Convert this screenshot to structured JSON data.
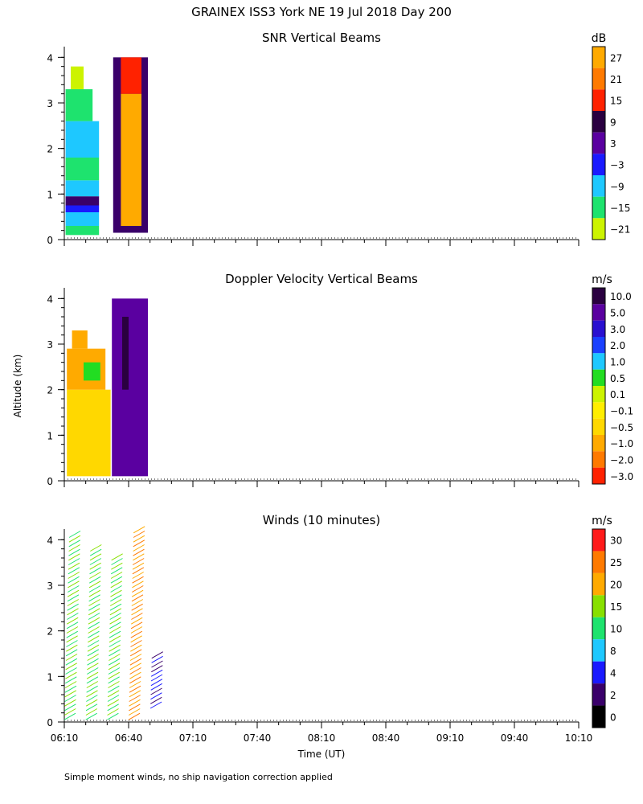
{
  "figure": {
    "title": "GRAINEX ISS3 York NE   19 Jul 2018 Day 200",
    "footnote": "Simple moment winds, no ship navigation correction applied",
    "ylabel": "Altitude (km)",
    "xlabel": "Time (UT)",
    "colors": {
      "low_snr": "#ccf300",
      "mid_snr": "#1ec8ff",
      "high_snr": "#ffaa00"
    }
  },
  "chart_data": [
    {
      "type": "heatmap",
      "title": "SNR Vertical Beams",
      "unit": "dB",
      "ylim": [
        0,
        4.2
      ],
      "yticks": [
        "0",
        "1",
        "2",
        "3",
        "4"
      ],
      "xticks": [
        "06:10",
        "06:40",
        "07:10",
        "07:40",
        "08:10",
        "08:40",
        "09:10",
        "09:40",
        "10:10"
      ],
      "colorbar": {
        "labels": [
          "27",
          "21",
          "15",
          "9",
          "3",
          "−3",
          "−9",
          "−15",
          "−21"
        ],
        "colors": [
          "#ffaa00",
          "#ff7a00",
          "#ff2200",
          "#2a0040",
          "#5a00a0",
          "#1a1aff",
          "#1ec8ff",
          "#1ee36e",
          "#ccf300"
        ]
      },
      "grid": false
    },
    {
      "type": "heatmap",
      "title": "Doppler Velocity Vertical Beams",
      "unit": "m/s",
      "ylim": [
        0,
        4.2
      ],
      "yticks": [
        "0",
        "1",
        "2",
        "3",
        "4"
      ],
      "xticks": [
        "06:10",
        "06:40",
        "07:10",
        "07:40",
        "08:10",
        "08:40",
        "09:10",
        "09:40",
        "10:10"
      ],
      "colorbar": {
        "labels": [
          "10.0",
          "5.0",
          "3.0",
          "2.0",
          "1.0",
          "0.5",
          "0.1",
          "−0.1",
          "−0.5",
          "−1.0",
          "−2.0",
          "−3.0"
        ],
        "colors": [
          "#2a0040",
          "#5a00a0",
          "#2a10d0",
          "#1a40ff",
          "#1ec8ff",
          "#22dd22",
          "#ccf300",
          "#ffee00",
          "#ffd800",
          "#ffaa00",
          "#ff7a00",
          "#ff2200"
        ]
      },
      "grid": false
    },
    {
      "type": "scatter",
      "title": "Winds (10 minutes)",
      "unit": "m/s",
      "ylim": [
        0,
        4.2
      ],
      "yticks": [
        "0",
        "1",
        "2",
        "3",
        "4"
      ],
      "xticks": [
        "06:10",
        "06:40",
        "07:10",
        "07:40",
        "08:10",
        "08:40",
        "09:10",
        "09:40",
        "10:10"
      ],
      "colorbar": {
        "labels": [
          "30",
          "25",
          "20",
          "15",
          "10",
          "8",
          "4",
          "2",
          "0"
        ],
        "colors": [
          "#ff1a1a",
          "#ff7a00",
          "#ffaa00",
          "#88e000",
          "#1ee36e",
          "#1ec8ff",
          "#1a1aff",
          "#3a006a",
          "#000000"
        ]
      },
      "grid": false
    }
  ]
}
